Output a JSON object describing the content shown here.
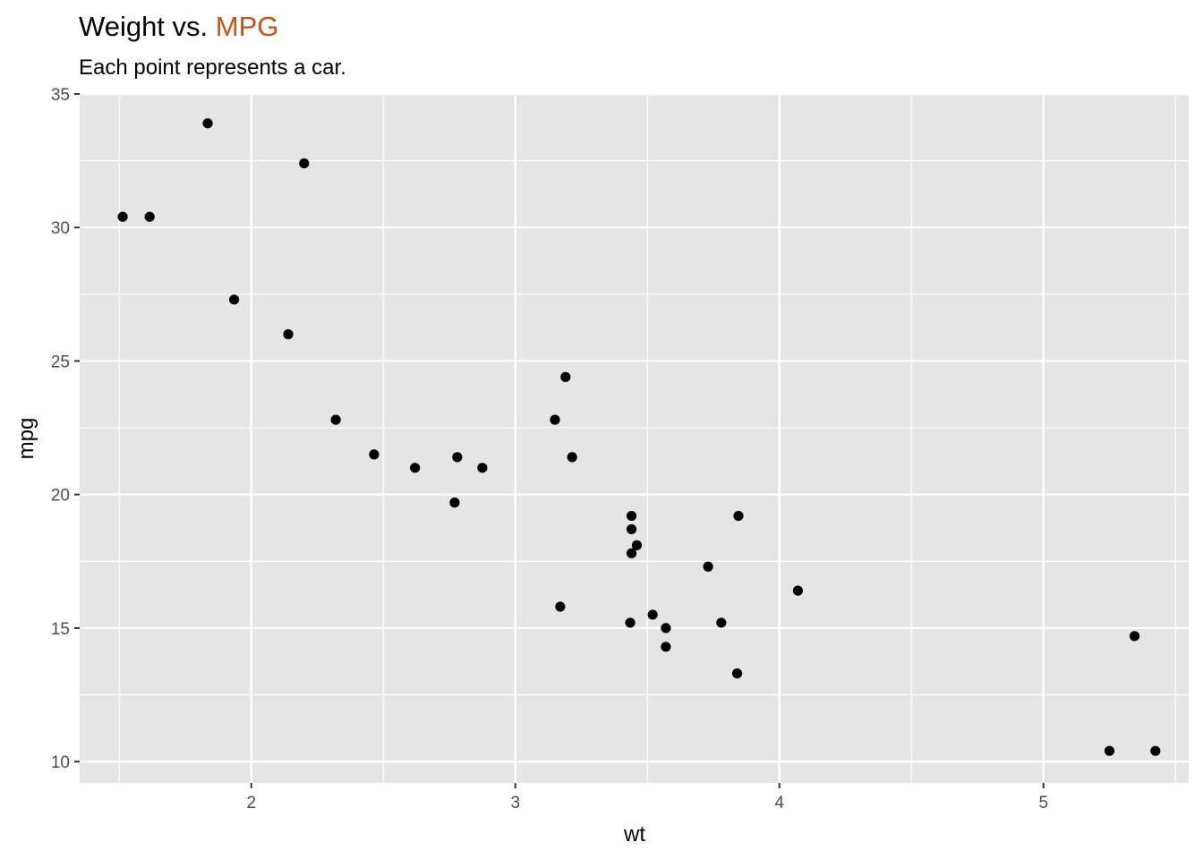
{
  "chart_data": {
    "type": "scatter",
    "title": "Weight vs. ",
    "title_highlight": "MPG",
    "title_highlight_color": "#C8521A",
    "subtitle": "Each point represents a car.",
    "xlabel": "wt",
    "ylabel": "mpg",
    "xlim": [
      1.35,
      5.55
    ],
    "ylim": [
      9.2,
      35.0
    ],
    "x_ticks": [
      2,
      3,
      4,
      5
    ],
    "x_tick_labels": [
      "2",
      "3",
      "4",
      "5"
    ],
    "x_minor_ticks": [
      1.5,
      2.5,
      3.5,
      4.5,
      5.5
    ],
    "y_ticks": [
      10,
      15,
      20,
      25,
      30,
      35
    ],
    "y_tick_labels": [
      "10",
      "15",
      "20",
      "25",
      "30",
      "35"
    ],
    "y_minor_ticks": [
      12.5,
      17.5,
      22.5,
      27.5,
      32.5
    ],
    "panel_background": "#E5E5E5",
    "grid_color": "#FFFFFF",
    "point_color": "#000000",
    "grid": true,
    "legend": "none",
    "points": [
      {
        "x": 2.62,
        "y": 21.0
      },
      {
        "x": 2.875,
        "y": 21.0
      },
      {
        "x": 2.32,
        "y": 22.8
      },
      {
        "x": 3.215,
        "y": 21.4
      },
      {
        "x": 3.44,
        "y": 18.7
      },
      {
        "x": 3.46,
        "y": 18.1
      },
      {
        "x": 3.57,
        "y": 14.3
      },
      {
        "x": 3.19,
        "y": 24.4
      },
      {
        "x": 3.15,
        "y": 22.8
      },
      {
        "x": 3.44,
        "y": 19.2
      },
      {
        "x": 3.44,
        "y": 17.8
      },
      {
        "x": 4.07,
        "y": 16.4
      },
      {
        "x": 3.73,
        "y": 17.3
      },
      {
        "x": 3.78,
        "y": 15.2
      },
      {
        "x": 5.25,
        "y": 10.4
      },
      {
        "x": 5.424,
        "y": 10.4
      },
      {
        "x": 5.345,
        "y": 14.7
      },
      {
        "x": 2.2,
        "y": 32.4
      },
      {
        "x": 1.615,
        "y": 30.4
      },
      {
        "x": 1.835,
        "y": 33.9
      },
      {
        "x": 2.465,
        "y": 21.5
      },
      {
        "x": 3.52,
        "y": 15.5
      },
      {
        "x": 3.435,
        "y": 15.2
      },
      {
        "x": 3.84,
        "y": 13.3
      },
      {
        "x": 3.845,
        "y": 19.2
      },
      {
        "x": 1.935,
        "y": 27.3
      },
      {
        "x": 2.14,
        "y": 26.0
      },
      {
        "x": 1.513,
        "y": 30.4
      },
      {
        "x": 3.17,
        "y": 15.8
      },
      {
        "x": 2.77,
        "y": 19.7
      },
      {
        "x": 3.57,
        "y": 15.0
      },
      {
        "x": 2.78,
        "y": 21.4
      }
    ]
  }
}
